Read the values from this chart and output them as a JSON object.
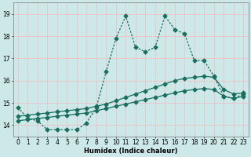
{
  "xlabel": "Humidex (Indice chaleur)",
  "background_color": "#cce8e8",
  "grid_color": "#e8c8c8",
  "line_color": "#1a6e5e",
  "xlim": [
    -0.5,
    23.5
  ],
  "ylim": [
    13.5,
    19.5
  ],
  "yticks": [
    14,
    15,
    16,
    17,
    18,
    19
  ],
  "xtick_labels": [
    "0",
    "1",
    "2",
    "3",
    "4",
    "5",
    "6",
    "7",
    "8",
    "9",
    "10",
    "11",
    "12",
    "13",
    "14",
    "15",
    "16",
    "17",
    "18",
    "19",
    "20",
    "21",
    "22",
    "23"
  ],
  "series1_x": [
    0,
    1,
    2,
    3,
    4,
    5,
    6,
    7,
    8,
    9,
    10,
    11,
    12,
    13,
    14,
    15,
    16,
    17,
    18,
    19,
    20,
    21,
    22,
    23
  ],
  "series1_y": [
    14.8,
    14.3,
    14.2,
    13.8,
    13.8,
    13.8,
    13.8,
    14.1,
    14.8,
    16.4,
    17.9,
    18.9,
    17.5,
    17.3,
    17.5,
    18.9,
    18.3,
    18.1,
    16.9,
    16.9,
    16.2,
    15.3,
    15.2,
    15.4
  ],
  "series2_x": [
    0,
    1,
    2,
    3,
    4,
    5,
    6,
    7,
    8,
    9,
    10,
    11,
    12,
    13,
    14,
    15,
    16,
    17,
    18,
    19,
    20,
    21,
    22,
    23
  ],
  "series2_y": [
    14.4,
    14.45,
    14.5,
    14.55,
    14.6,
    14.65,
    14.7,
    14.75,
    14.85,
    14.95,
    15.1,
    15.25,
    15.4,
    15.55,
    15.7,
    15.85,
    16.0,
    16.1,
    16.15,
    16.2,
    16.15,
    15.6,
    15.4,
    15.45
  ],
  "series3_x": [
    0,
    1,
    2,
    3,
    4,
    5,
    6,
    7,
    8,
    9,
    10,
    11,
    12,
    13,
    14,
    15,
    16,
    17,
    18,
    19,
    20,
    21,
    22,
    23
  ],
  "series3_y": [
    14.2,
    14.25,
    14.3,
    14.35,
    14.4,
    14.45,
    14.5,
    14.55,
    14.65,
    14.75,
    14.85,
    14.95,
    15.05,
    15.15,
    15.25,
    15.35,
    15.45,
    15.55,
    15.6,
    15.65,
    15.6,
    15.3,
    15.2,
    15.3
  ],
  "marker_size": 2.5,
  "line_width": 0.9
}
